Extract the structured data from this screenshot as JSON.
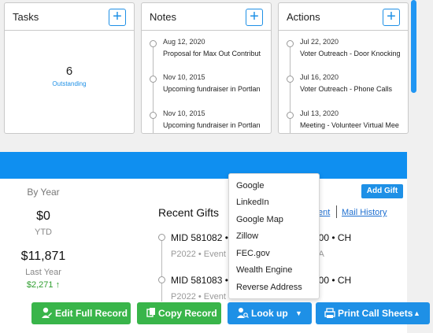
{
  "cards": {
    "tasks": {
      "title": "Tasks",
      "add_label": "+",
      "count": "6",
      "count_label": "Outstanding"
    },
    "notes": {
      "title": "Notes",
      "add_label": "+",
      "items": [
        {
          "date": "Aug 12, 2020",
          "text": "Proposal for Max Out Contribut"
        },
        {
          "date": "Nov 10, 2015",
          "text": "Upcoming fundraiser in Portlan"
        },
        {
          "date": "Nov 10, 2015",
          "text": "Upcoming fundraiser in Portlan"
        }
      ]
    },
    "actions": {
      "title": "Actions",
      "add_label": "+",
      "items": [
        {
          "date": "Jul 22, 2020",
          "text": "Voter Outreach - Door Knocking"
        },
        {
          "date": "Jul 16, 2020",
          "text": "Voter Outreach - Phone Calls"
        },
        {
          "date": "Jul 13, 2020",
          "text": "Meeting - Volunteer Virtual Mee"
        }
      ]
    }
  },
  "summary": {
    "by_year_label": "By Year",
    "ytd_value": "$0",
    "ytd_label": "YTD",
    "last_year_value": "$11,871",
    "last_year_label": "Last Year",
    "change_value": "$2,271 ↑"
  },
  "recent_gifts": {
    "title": "Recent Gifts",
    "add_gift_label": "Add Gift",
    "link_partial": "ent",
    "mail_history_label": "Mail History",
    "gifts": [
      {
        "main": "MID 581082 •",
        "sub": "P2022 • Event",
        "right": "100 • CH",
        "right_sub": "VA"
      },
      {
        "main": "MID 581083 •",
        "sub": "P2022 • Event",
        "right": "100 • CH",
        "right_sub": ""
      }
    ]
  },
  "lookup_menu": {
    "items": [
      "Google",
      "LinkedIn",
      "Google Map",
      "Zillow",
      "FEC.gov",
      "Wealth Engine",
      "Reverse Address"
    ]
  },
  "toolbar": {
    "edit_full_record_label": "Edit Full Record",
    "copy_record_label": "Copy Record",
    "look_up_label": "Look up",
    "print_call_sheets_label": "Print Call Sheets"
  },
  "icons": {
    "edit": "user-edit-icon",
    "copy": "copy-icon",
    "lookup": "user-search-icon",
    "print": "print-icon",
    "caret_down": "caret-down-icon",
    "caret_up": "caret-up-icon",
    "plus": "plus-icon"
  },
  "colors": {
    "accent_blue": "#1e90e6",
    "panel_bar_blue": "#0f8ff0",
    "green": "#39b54a",
    "positive_green": "#2e9e2e"
  }
}
